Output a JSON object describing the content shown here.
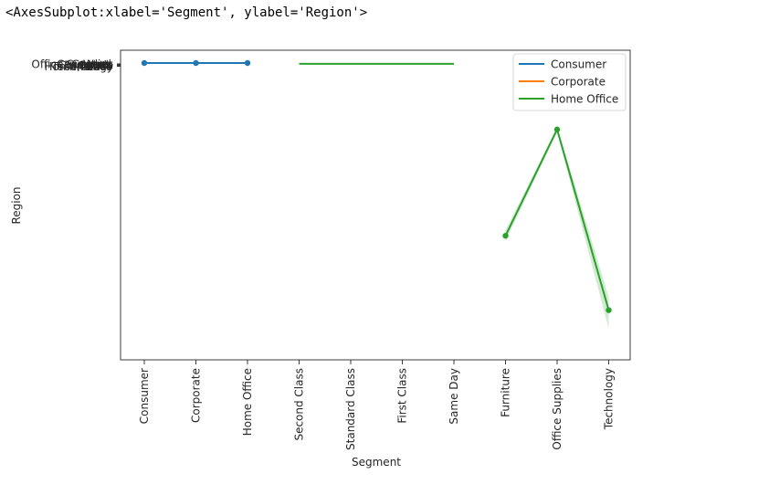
{
  "output_repr": "<AxesSubplot:xlabel='Segment', ylabel='Region'>",
  "chart_data": {
    "type": "line",
    "xlabel": "Segment",
    "ylabel": "Region",
    "x_categories": [
      "Consumer",
      "Corporate",
      "Home Office",
      "Second Class",
      "Standard Class",
      "First Class",
      "Same Day",
      "Furniture",
      "Office Supplies",
      "Technology"
    ],
    "y_tick_labels": [
      "Office Supplies",
      "Furniture",
      "Technology",
      "Consumer",
      "Corporate",
      "Home Office",
      "Central",
      "South",
      "East",
      "West"
    ],
    "ylim": [
      0,
      1
    ],
    "legend_position": "top-right",
    "legend": [
      {
        "name": "Consumer",
        "color": "#1f77b4"
      },
      {
        "name": "Corporate",
        "color": "#ff7f0e"
      },
      {
        "name": "Home Office",
        "color": "#2ca02c"
      }
    ],
    "series": [
      {
        "name": "Consumer",
        "color": "#1f77b4",
        "markers": true,
        "points": [
          {
            "x": "Consumer",
            "y": 0.0
          },
          {
            "x": "Corporate",
            "y": 0.0
          },
          {
            "x": "Home Office",
            "y": 0.0
          }
        ]
      },
      {
        "name": "Home Office",
        "color": "#2ca02c",
        "markers": false,
        "points": [
          {
            "x": "Second Class",
            "y": 0.003
          },
          {
            "x": "Same Day",
            "y": 0.003
          }
        ]
      },
      {
        "name": "Home Office",
        "color": "#2ca02c",
        "markers": true,
        "points": [
          {
            "x": "Furniture",
            "y": 0.65,
            "ci": [
              0.63,
              0.67
            ]
          },
          {
            "x": "Office Supplies",
            "y": 0.25,
            "ci": [
              0.24,
              0.26
            ]
          },
          {
            "x": "Technology",
            "y": 0.93,
            "ci": [
              0.88,
              1.0
            ]
          }
        ]
      }
    ]
  }
}
